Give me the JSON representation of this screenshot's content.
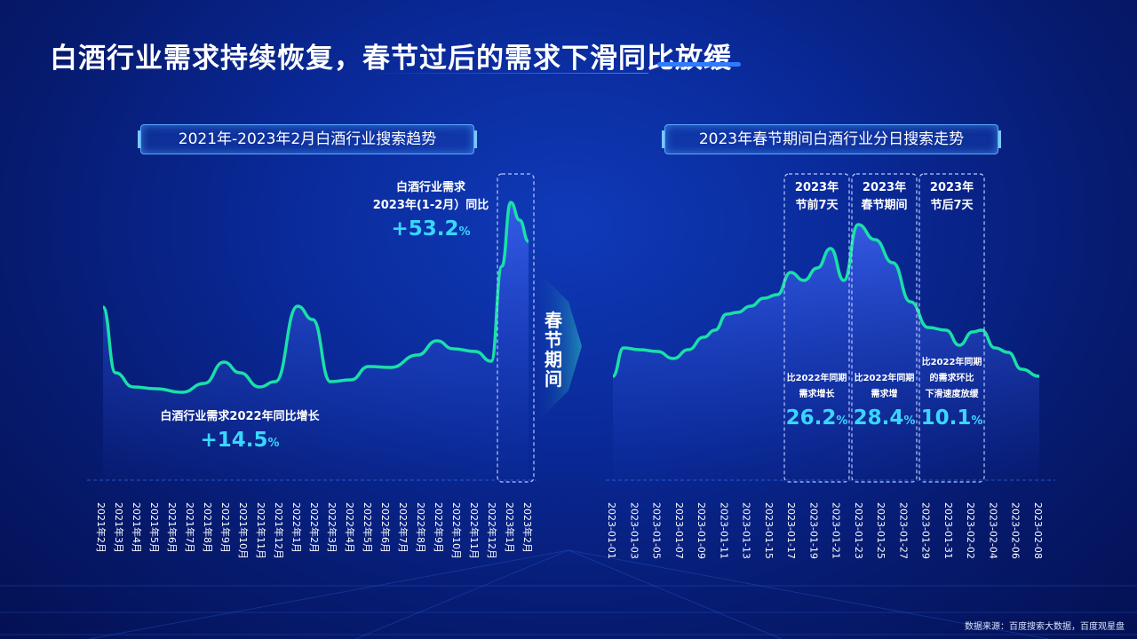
{
  "page_title": "白酒行业需求持续恢复，春节过后的需求下滑同比放缓",
  "source": "数据来源：百度搜索大数据，百度观星盘",
  "separator_label": "春节期间",
  "colors": {
    "line": "#19e0a8",
    "area": "#2d4fd6",
    "highlight_text": "#3ad6ff"
  },
  "chart_data": [
    {
      "type": "line",
      "title": "2021年-2023年2月白酒行业搜索趋势",
      "x_labels": [
        "2021年2月",
        "2021年3月",
        "2021年4月",
        "2021年5月",
        "2021年6月",
        "2021年7月",
        "2021年8月",
        "2021年9月",
        "2021年10月",
        "2021年11月",
        "2021年12月",
        "2022年1月",
        "2022年2月",
        "2022年3月",
        "2022年4月",
        "2022年5月",
        "2022年6月",
        "2022年7月",
        "2022年8月",
        "2022年9月",
        "2022年10月",
        "2022年11月",
        "2022年12月",
        "2023年1月",
        "2023年2月"
      ],
      "annotations": [
        {
          "label": "白酒行业需求2022年同比增长",
          "value": "+14.5",
          "unit": "%"
        },
        {
          "label_line1": "白酒行业需求",
          "label_line2": "2023年(1-2月）同比",
          "value": "+53.2",
          "unit": "%"
        }
      ]
    },
    {
      "type": "line",
      "title": "2023年春节期间白酒行业分日搜索走势",
      "x_labels": [
        "2023-01-01",
        "2023-01-03",
        "2023-01-05",
        "2023-01-07",
        "2023-01-09",
        "2023-01-11",
        "2023-01-13",
        "2023-01-15",
        "2023-01-17",
        "2023-01-19",
        "2023-01-21",
        "2023-01-23",
        "2023-01-25",
        "2023-01-27",
        "2023-01-29",
        "2023-01-31",
        "2023-02-02",
        "2023-02-04",
        "2023-02-06",
        "2023-02-08"
      ],
      "boxes": [
        {
          "head1": "2023年",
          "head2": "节前7天",
          "note1": "比2022年同期",
          "note2": "需求增长",
          "value": "26.2",
          "unit": "%"
        },
        {
          "head1": "2023年",
          "head2": "春节期间",
          "note1": "比2022年同期",
          "note2": "需求增",
          "value": "28.4",
          "unit": "%"
        },
        {
          "head1": "2023年",
          "head2": "节后7天",
          "note1": "比2022年同期",
          "note2": "的需求环比",
          "note3": "下滑速度放缓",
          "value": "10.1",
          "unit": "%"
        }
      ]
    }
  ]
}
